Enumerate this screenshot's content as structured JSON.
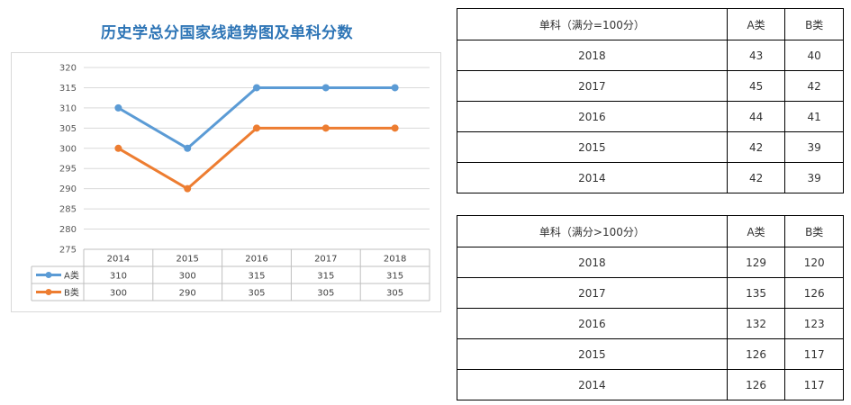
{
  "chart_title": "历史学总分国家线趋势图及单科分数",
  "chart_data": {
    "type": "line",
    "title": "历史学总分国家线趋势图及单科分数",
    "categories": [
      "2014",
      "2015",
      "2016",
      "2017",
      "2018"
    ],
    "series": [
      {
        "name": "A类",
        "values": [
          310,
          300,
          315,
          315,
          315
        ],
        "color": "#5b9bd5"
      },
      {
        "name": "B类",
        "values": [
          300,
          290,
          305,
          305,
          305
        ],
        "color": "#ed7d31"
      }
    ],
    "ylim": [
      275,
      320
    ],
    "yticks": [
      275,
      280,
      285,
      290,
      295,
      300,
      305,
      310,
      315,
      320
    ],
    "grid": true,
    "legend": "data-table-left"
  },
  "tables": [
    {
      "headers": [
        "单科（满分=100分）",
        "A类",
        "B类"
      ],
      "rows": [
        [
          "2018",
          "43",
          "40"
        ],
        [
          "2017",
          "45",
          "42"
        ],
        [
          "2016",
          "44",
          "41"
        ],
        [
          "2015",
          "42",
          "39"
        ],
        [
          "2014",
          "42",
          "39"
        ]
      ]
    },
    {
      "headers": [
        "单科（满分>100分）",
        "A类",
        "B类"
      ],
      "rows": [
        [
          "2018",
          "129",
          "120"
        ],
        [
          "2017",
          "135",
          "126"
        ],
        [
          "2016",
          "132",
          "123"
        ],
        [
          "2015",
          "126",
          "117"
        ],
        [
          "2014",
          "126",
          "117"
        ]
      ]
    }
  ]
}
